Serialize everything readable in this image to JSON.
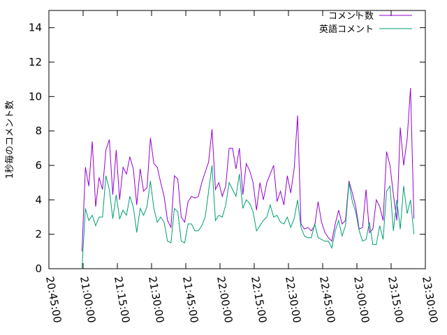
{
  "chart_data": {
    "type": "line",
    "ylabel": "1秒毎のコメント数",
    "xlim": [
      "20:45:00",
      "23:30:00"
    ],
    "xticks": [
      "20:45:00",
      "21:00:00",
      "21:15:00",
      "21:30:00",
      "21:45:00",
      "22:00:00",
      "22:15:00",
      "22:30:00",
      "22:45:00",
      "23:00:00",
      "23:15:00",
      "23:30:00"
    ],
    "ylim": [
      0,
      15
    ],
    "yticks": [
      0,
      2,
      4,
      6,
      8,
      10,
      12,
      14
    ],
    "legend": "top-right",
    "x": [
      "20:59:30",
      "21:01:00",
      "21:02:30",
      "21:04:00",
      "21:05:30",
      "21:07:00",
      "21:08:30",
      "21:10:00",
      "21:11:30",
      "21:13:00",
      "21:14:30",
      "21:16:00",
      "21:17:30",
      "21:19:00",
      "21:20:30",
      "21:22:00",
      "21:23:30",
      "21:25:00",
      "21:26:30",
      "21:28:00",
      "21:29:30",
      "21:31:00",
      "21:32:30",
      "21:34:00",
      "21:35:30",
      "21:37:00",
      "21:38:30",
      "21:40:00",
      "21:41:30",
      "21:43:00",
      "21:44:30",
      "21:46:00",
      "21:47:30",
      "21:49:00",
      "21:50:30",
      "21:52:00",
      "21:53:30",
      "21:55:00",
      "21:56:30",
      "21:58:00",
      "21:59:30",
      "22:01:00",
      "22:02:30",
      "22:04:00",
      "22:05:30",
      "22:07:00",
      "22:08:30",
      "22:10:00",
      "22:11:30",
      "22:13:00",
      "22:14:30",
      "22:16:00",
      "22:17:30",
      "22:19:00",
      "22:20:30",
      "22:22:00",
      "22:23:30",
      "22:25:00",
      "22:26:30",
      "22:28:00",
      "22:29:30",
      "22:31:00",
      "22:32:30",
      "22:34:00",
      "22:35:30",
      "22:37:00",
      "22:38:30",
      "22:40:00",
      "22:41:30",
      "22:43:00",
      "22:44:30",
      "22:46:00",
      "22:47:30",
      "22:49:00",
      "22:50:30",
      "22:52:00",
      "22:53:30",
      "22:55:00",
      "22:56:30",
      "22:58:00",
      "22:59:30",
      "23:01:00",
      "23:02:30",
      "23:04:00",
      "23:05:30",
      "23:07:00",
      "23:08:30",
      "23:10:00",
      "23:11:30",
      "23:13:00",
      "23:14:30",
      "23:16:00",
      "23:17:30",
      "23:19:00",
      "23:20:30",
      "23:22:00",
      "23:23:30",
      "23:25:00"
    ],
    "series": [
      {
        "name": "コメント数",
        "color": "#9400d3",
        "values": [
          1.0,
          5.9,
          4.8,
          7.4,
          3.6,
          5.3,
          4.6,
          6.9,
          7.5,
          4.3,
          6.9,
          4.0,
          5.9,
          5.5,
          6.5,
          5.8,
          3.7,
          5.8,
          4.5,
          4.7,
          7.6,
          6.1,
          5.9,
          5.0,
          4.2,
          2.8,
          2.4,
          5.4,
          5.2,
          3.0,
          2.7,
          3.9,
          4.2,
          4.1,
          4.2,
          5.0,
          5.6,
          6.2,
          8.1,
          4.6,
          5.0,
          4.2,
          4.8,
          7.0,
          7.0,
          5.8,
          7.0,
          4.3,
          6.1,
          5.7,
          5.0,
          3.4,
          5.0,
          4.0,
          5.0,
          5.5,
          6.0,
          3.9,
          4.5,
          3.7,
          5.4,
          4.4,
          5.8,
          8.9,
          2.6,
          2.3,
          2.4,
          2.2,
          2.5,
          3.9,
          2.7,
          2.1,
          1.8,
          1.6,
          2.6,
          3.4,
          2.6,
          2.8,
          5.1,
          4.4,
          3.6,
          2.3,
          2.4,
          4.6,
          2.1,
          2.3,
          4.0,
          3.6,
          2.8,
          6.8,
          6.0,
          4.3,
          2.8,
          8.2,
          6.0,
          7.5,
          10.5,
          2.9
        ]
      },
      {
        "name": "英語コメント",
        "color": "#009e73",
        "values": [
          0.0,
          3.5,
          2.8,
          3.1,
          2.5,
          3.0,
          3.0,
          5.4,
          4.6,
          2.9,
          4.3,
          2.9,
          3.4,
          3.1,
          4.2,
          3.6,
          2.1,
          3.5,
          3.1,
          3.6,
          5.1,
          3.5,
          2.7,
          3.0,
          2.7,
          1.6,
          1.5,
          3.5,
          3.3,
          1.6,
          1.5,
          2.6,
          2.6,
          2.2,
          2.2,
          2.5,
          3.0,
          4.5,
          6.0,
          2.8,
          3.1,
          3.0,
          3.7,
          5.0,
          4.6,
          4.2,
          5.5,
          3.5,
          4.0,
          3.8,
          3.3,
          2.2,
          2.5,
          2.8,
          3.0,
          3.7,
          3.0,
          3.1,
          2.7,
          2.6,
          3.0,
          2.4,
          2.9,
          4.0,
          2.4,
          1.9,
          1.8,
          1.8,
          2.6,
          1.8,
          1.7,
          1.6,
          1.6,
          1.2,
          2.2,
          2.8,
          1.9,
          2.5,
          5.0,
          3.9,
          3.3,
          2.2,
          1.6,
          1.7,
          2.7,
          1.4,
          1.4,
          2.5,
          1.7,
          4.5,
          4.8,
          2.2,
          4.0,
          2.3,
          4.8,
          3.2,
          4.0,
          2.0
        ]
      }
    ]
  }
}
